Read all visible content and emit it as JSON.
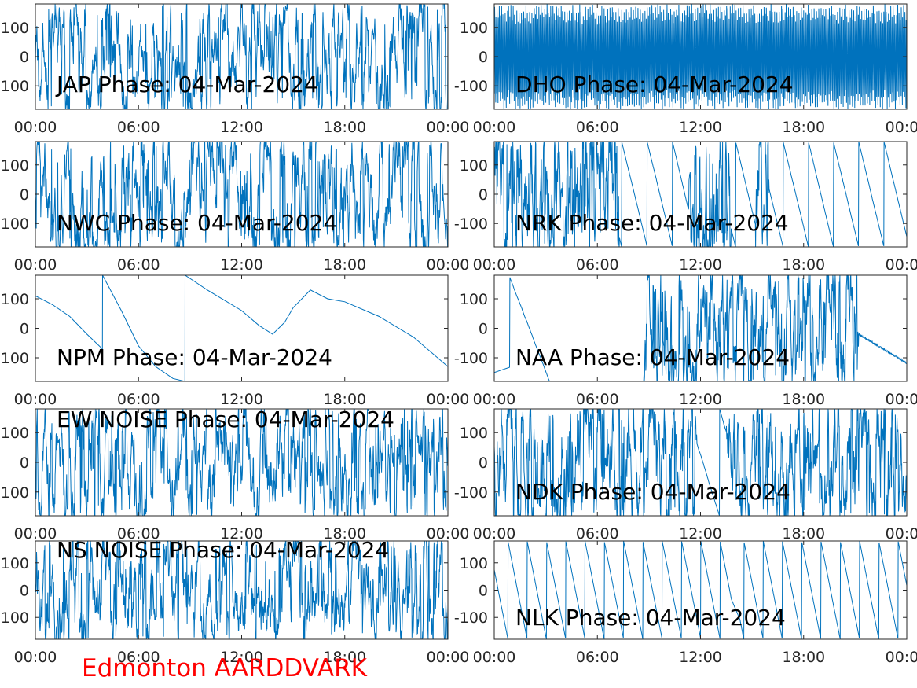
{
  "figure": {
    "footer": "Edmonton AARDDVARK",
    "footer_color": "#ff0000",
    "trace_color": "#0072bd",
    "axis_color": "#262626"
  },
  "chart_data": [
    {
      "type": "line",
      "title": "JAP Phase: 04-Mar-2024",
      "x_ticks": [
        "00:00",
        "06:00",
        "12:00",
        "18:00",
        "00:00"
      ],
      "y_ticks": [
        "100",
        "0",
        "-100"
      ],
      "xlim": [
        0,
        24
      ],
      "ylim": [
        -180,
        180
      ],
      "pattern": "noisy",
      "series": [
        {
          "values": []
        }
      ]
    },
    {
      "type": "line",
      "title": "DHO Phase: 04-Mar-2024",
      "x_ticks": [
        "00:00",
        "06:00",
        "12:00",
        "18:00",
        "00:00"
      ],
      "y_ticks": [
        "100",
        "0",
        "-100"
      ],
      "xlim": [
        0,
        24
      ],
      "ylim": [
        -180,
        180
      ],
      "pattern": "fast-wrap",
      "series": [
        {
          "values": []
        }
      ]
    },
    {
      "type": "line",
      "title": "NWC Phase: 04-Mar-2024",
      "x_ticks": [
        "00:00",
        "06:00",
        "12:00",
        "18:00",
        "00:00"
      ],
      "y_ticks": [
        "100",
        "0",
        "-100"
      ],
      "xlim": [
        0,
        24
      ],
      "ylim": [
        -180,
        180
      ],
      "pattern": "noisy",
      "series": [
        {
          "values": []
        }
      ]
    },
    {
      "type": "line",
      "title": "NRK Phase: 04-Mar-2024",
      "x_ticks": [
        "00:00",
        "06:00",
        "12:00",
        "18:00",
        "00:00"
      ],
      "y_ticks": [
        "100",
        "0",
        "-100"
      ],
      "xlim": [
        0,
        24
      ],
      "ylim": [
        -180,
        180
      ],
      "pattern": "mixed",
      "series": [
        {
          "values": []
        }
      ]
    },
    {
      "type": "line",
      "title": "NPM Phase: 04-Mar-2024",
      "x_ticks": [
        "00:00",
        "06:00",
        "12:00",
        "18:00",
        "00:00"
      ],
      "y_ticks": [
        "100",
        "0",
        "-100"
      ],
      "xlim": [
        0,
        24
      ],
      "ylim": [
        -180,
        180
      ],
      "pattern": "clean",
      "series": [
        {
          "name": "",
          "x": [
            0,
            1,
            2,
            3,
            3.9,
            3.91,
            5,
            6,
            7,
            8,
            8.7,
            8.71,
            10,
            12,
            13,
            13.8,
            14.5,
            15,
            15.5,
            16,
            17,
            18,
            20,
            22,
            24
          ],
          "values": [
            110,
            80,
            40,
            -20,
            -70,
            180,
            60,
            -60,
            -130,
            -170,
            -180,
            180,
            130,
            60,
            10,
            -20,
            20,
            70,
            100,
            130,
            100,
            90,
            40,
            -30,
            -130
          ]
        }
      ]
    },
    {
      "type": "line",
      "title": "NAA Phase: 04-Mar-2024",
      "x_ticks": [
        "00:00",
        "06:00",
        "12:00",
        "18:00",
        "00:00"
      ],
      "y_ticks": [
        "100",
        "0",
        "-100"
      ],
      "xlim": [
        0,
        24
      ],
      "ylim": [
        -180,
        180
      ],
      "pattern": "naa",
      "series": [
        {
          "values": []
        }
      ]
    },
    {
      "type": "line",
      "title": "EW NOISE Phase: 04-Mar-2024",
      "x_ticks": [
        "00:00",
        "06:00",
        "12:00",
        "18:00",
        "00:00"
      ],
      "y_ticks": [
        "100",
        "0",
        "-100"
      ],
      "xlim": [
        0,
        24
      ],
      "ylim": [
        -180,
        180
      ],
      "pattern": "noisy",
      "series": [
        {
          "values": []
        }
      ]
    },
    {
      "type": "line",
      "title": "NDK Phase: 04-Mar-2024",
      "x_ticks": [
        "00:00",
        "06:00",
        "12:00",
        "18:00",
        "00:00"
      ],
      "y_ticks": [
        "100",
        "0",
        "-100"
      ],
      "xlim": [
        0,
        24
      ],
      "ylim": [
        -180,
        180
      ],
      "pattern": "ndk",
      "series": [
        {
          "values": []
        }
      ]
    },
    {
      "type": "line",
      "title": "NS NOISE Phase: 04-Mar-2024",
      "x_ticks": [
        "00:00",
        "06:00",
        "12:00",
        "18:00",
        "00:00"
      ],
      "y_ticks": [
        "100",
        "0",
        "-100"
      ],
      "xlim": [
        0,
        24
      ],
      "ylim": [
        -180,
        180
      ],
      "pattern": "noisy",
      "series": [
        {
          "values": []
        }
      ]
    },
    {
      "type": "line",
      "title": "NLK Phase: 04-Mar-2024",
      "x_ticks": [
        "00:00",
        "06:00",
        "12:00",
        "18:00",
        "00:00"
      ],
      "y_ticks": [
        "100",
        "0",
        "-100"
      ],
      "xlim": [
        0,
        24
      ],
      "ylim": [
        -180,
        180
      ],
      "pattern": "sawtooth",
      "series": [
        {
          "values": []
        }
      ]
    }
  ]
}
